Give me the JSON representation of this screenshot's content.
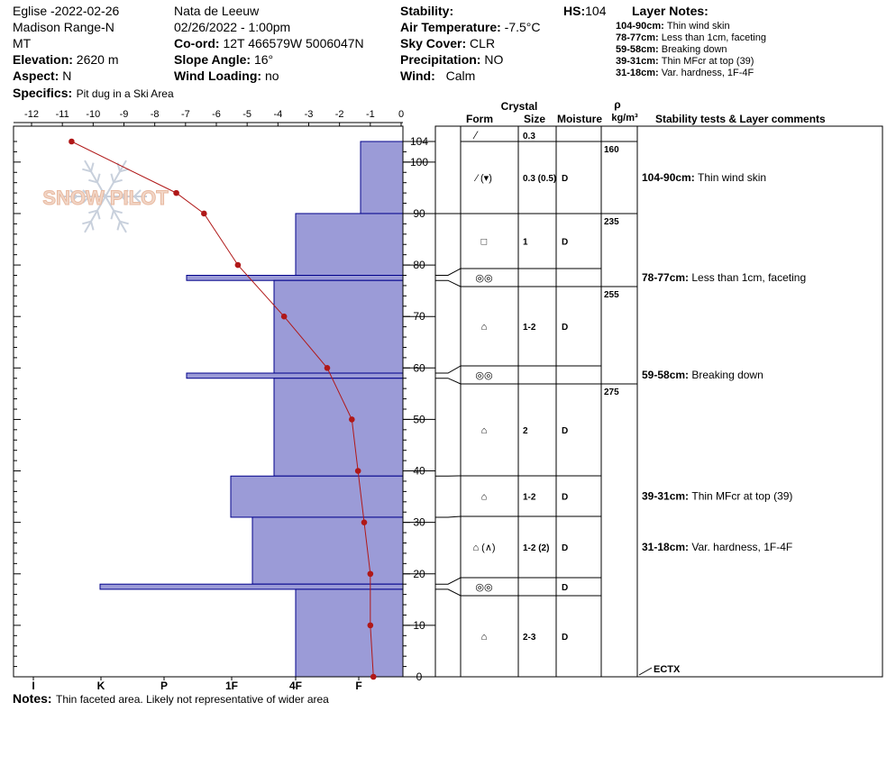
{
  "header": {
    "site": "Eglise -2022-02-26",
    "range": "Madison Range-N",
    "state": "MT",
    "elevation_label": "Elevation:",
    "elevation": "2620 m",
    "aspect_label": "Aspect:",
    "aspect": "N",
    "specifics_label": "Specifics:",
    "specifics": "Pit dug in a Ski Area",
    "observer": "Nata de Leeuw",
    "datetime": "02/26/2022 - 1:00pm",
    "coord_label": "Co-ord:",
    "coord": "12T 466579W 5006047N",
    "slope_label": "Slope Angle:",
    "slope": "16°",
    "wind_loading_label": "Wind Loading:",
    "wind_loading": "no",
    "stability_label": "Stability:",
    "stability": "",
    "air_temp_label": "Air Temperature:",
    "air_temp": "-7.5°C",
    "sky_label": "Sky Cover:",
    "sky": "CLR",
    "precip_label": "Precipitation:",
    "precip": "NO",
    "wind_label": "Wind:",
    "wind": "Calm",
    "hs_label": "HS:",
    "hs": "104"
  },
  "layer_notes": {
    "title": "Layer Notes:",
    "items": [
      {
        "range": "104-90cm:",
        "text": "Thin wind skin"
      },
      {
        "range": "78-77cm:",
        "text": "Less than 1cm, faceting"
      },
      {
        "range": "59-58cm:",
        "text": "Breaking down"
      },
      {
        "range": "39-31cm:",
        "text": "Thin MFcr at top (39)"
      },
      {
        "range": "31-18cm:",
        "text": "Var. hardness, 1F-4F"
      }
    ]
  },
  "logo": {
    "text": "SNOW PILOT"
  },
  "table": {
    "crystal_header": "Crystal",
    "form_header": "Form",
    "size_header": "Size",
    "moisture_header": "Moisture",
    "rho_header": "ρ",
    "density_unit": "kg/m³",
    "comments_header": "Stability tests & Layer comments",
    "rows": [
      {
        "top": 104,
        "bottom": 90,
        "form": "⁄ (▾)",
        "size": "0.3 (0.5)",
        "moisture": "D",
        "comment_range": "104-90cm:",
        "comment": "Thin wind skin"
      },
      {
        "top": 90,
        "bottom": 78,
        "form": "□",
        "size": "1",
        "moisture": "D",
        "comment_range": "",
        "comment": ""
      },
      {
        "top": 78,
        "bottom": 77,
        "form": "◎◎",
        "size": "",
        "moisture": "",
        "comment_range": "78-77cm:",
        "comment": "Less than 1cm, faceting"
      },
      {
        "top": 77,
        "bottom": 59,
        "form": "⌂",
        "size": "1-2",
        "moisture": "D",
        "comment_range": "",
        "comment": ""
      },
      {
        "top": 59,
        "bottom": 58,
        "form": "◎◎",
        "size": "",
        "moisture": "",
        "comment_range": "59-58cm:",
        "comment": "Breaking down"
      },
      {
        "top": 58,
        "bottom": 39,
        "form": "⌂",
        "size": "2",
        "moisture": "D",
        "comment_range": "",
        "comment": ""
      },
      {
        "top": 39,
        "bottom": 31,
        "form": "⌂",
        "size": "1-2",
        "moisture": "D",
        "comment_range": "39-31cm:",
        "comment": "Thin MFcr at top (39)"
      },
      {
        "top": 31,
        "bottom": 18,
        "form": "⌂ (∧)",
        "size": "1-2 (2)",
        "moisture": "D",
        "comment_range": "31-18cm:",
        "comment": "Var. hardness, 1F-4F"
      },
      {
        "top": 18,
        "bottom": 17,
        "form": "◎◎",
        "size": "",
        "moisture": "D",
        "comment_range": "",
        "comment": ""
      },
      {
        "top": 17,
        "bottom": 0,
        "form": "⌂",
        "size": "2-3",
        "moisture": "D",
        "comment_range": "",
        "comment": ""
      }
    ],
    "surface_form": "⁄",
    "surface_size": "0.3",
    "densities": [
      {
        "depth": 104,
        "value": "160"
      },
      {
        "depth": 90,
        "value": "235"
      },
      {
        "depth": 77,
        "value": "255"
      },
      {
        "depth": 58,
        "value": "275"
      }
    ],
    "test_label": "ECTX"
  },
  "notes": {
    "label": "Notes:",
    "text": "Thin faceted area. Likely not representative of wider area"
  },
  "chart_data": {
    "type": "line",
    "title": "",
    "xlabel": "",
    "ylabel": "",
    "ylim": [
      0,
      104
    ],
    "temp_xlim": [
      -12,
      0
    ],
    "temp_ticks": [
      -12,
      -11,
      -10,
      -9,
      -8,
      -7,
      -6,
      -5,
      -4,
      -3,
      -2,
      -1,
      0
    ],
    "height_ticks": [
      0,
      10,
      20,
      30,
      40,
      50,
      60,
      70,
      80,
      90,
      100,
      104
    ],
    "hardness_ticks": [
      "I",
      "K",
      "P",
      "1F",
      "4F",
      "F"
    ],
    "series": [
      {
        "kind": "temperature-profile",
        "color": "#b01818",
        "points": [
          {
            "temp": -10.7,
            "height": 104
          },
          {
            "temp": -7.3,
            "height": 94
          },
          {
            "temp": -6.4,
            "height": 90
          },
          {
            "temp": -5.3,
            "height": 80
          },
          {
            "temp": -3.8,
            "height": 70
          },
          {
            "temp": -2.4,
            "height": 60
          },
          {
            "temp": -1.6,
            "height": 50
          },
          {
            "temp": -1.4,
            "height": 40
          },
          {
            "temp": -1.2,
            "height": 30
          },
          {
            "temp": -1.0,
            "height": 20
          },
          {
            "temp": -1.0,
            "height": 10
          },
          {
            "temp": -0.9,
            "height": 0
          }
        ]
      },
      {
        "kind": "hardness-profile",
        "color": "#9b9bd7",
        "edge_color": "#00008b",
        "layers": [
          {
            "top": 104,
            "bottom": 90,
            "hardness": "F+"
          },
          {
            "top": 90,
            "bottom": 78,
            "hardness": "4F"
          },
          {
            "top": 78,
            "bottom": 77,
            "hardness": "P-"
          },
          {
            "top": 77,
            "bottom": 59,
            "hardness": "4F-"
          },
          {
            "top": 59,
            "bottom": 58,
            "hardness": "P-"
          },
          {
            "top": 58,
            "bottom": 39,
            "hardness": "4F-"
          },
          {
            "top": 39,
            "bottom": 31,
            "hardness": "1F+"
          },
          {
            "top": 31,
            "bottom": 18,
            "hardness": "1F-4F"
          },
          {
            "top": 18,
            "bottom": 17,
            "hardness": "K-P"
          },
          {
            "top": 17,
            "bottom": 0,
            "hardness": "4F"
          }
        ]
      }
    ],
    "grid": false
  }
}
